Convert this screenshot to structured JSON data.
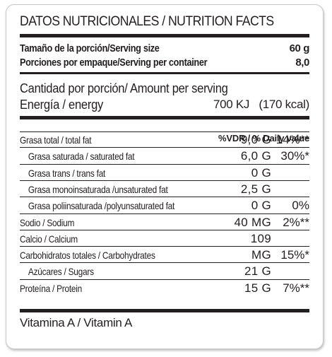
{
  "title": "DATOS NUTRICIONALES / NUTRITION FACTS",
  "serving": {
    "size_label": "Tamaño de la porción/Serving size",
    "size_value": "60 g",
    "per_container_label": "Porciones por empaque/Serving per container",
    "per_container_value": "8,0"
  },
  "amount_per_serving": "Cantidad por porción/ Amount per serving",
  "energy": {
    "label": "Energía / energy",
    "value": "700 KJ   (170 kcal)"
  },
  "dv_header": "%VDR / % Daily value",
  "nutrients": [
    {
      "label": "Grasa total / total fat",
      "amount": "9,0 G",
      "dv": "14%**"
    },
    {
      "label": "Grasa saturada / saturated fat",
      "amount": "6,0 G",
      "dv": "30%*"
    },
    {
      "label": "Grasa trans / trans fat",
      "amount": "0 G",
      "dv": ""
    },
    {
      "label": "Grasa monoinsaturada /unsaturated fat",
      "amount": "2,5 G",
      "dv": ""
    },
    {
      "label": "Grasa poliinsaturada /polyunsaturated fat",
      "amount": "0 G",
      "dv": "0%"
    },
    {
      "label": "Sodio / Sodium",
      "amount": "40 MG",
      "dv": "2%**"
    },
    {
      "label": "Calcio / Calcium",
      "amount": "109",
      "dv": ""
    },
    {
      "label": "Carbohidratos totales / Carbohydrates",
      "amount": "MG",
      "dv": "15%*"
    },
    {
      "label": "Azúcares / Sugars",
      "amount": "21 G",
      "dv": ""
    },
    {
      "label": "Proteína / Protein",
      "amount": "15 G",
      "dv": "7%**"
    }
  ],
  "vitamin": "Vitamina A / Vitamin A"
}
